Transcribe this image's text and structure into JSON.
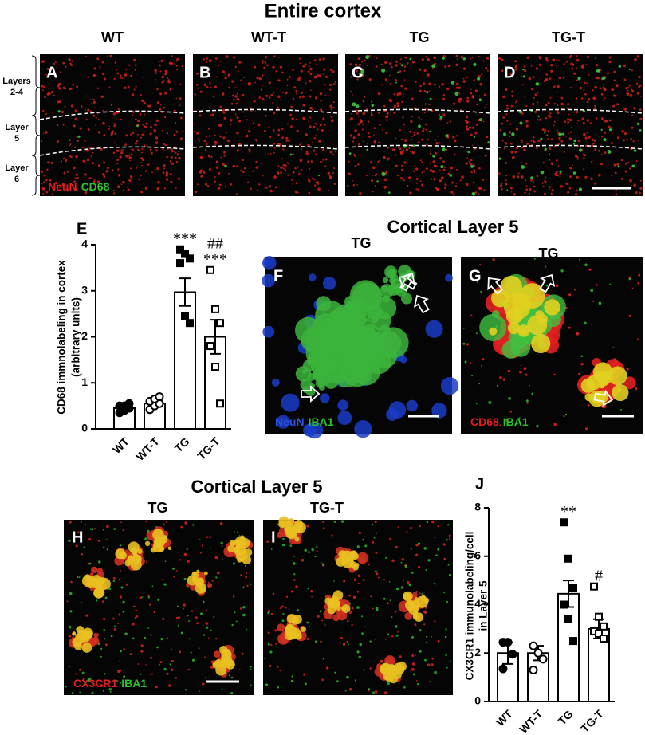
{
  "title": "Entire cortex",
  "columns": [
    "WT",
    "WT-T",
    "TG",
    "TG-T"
  ],
  "panel_labels": [
    "A",
    "B",
    "C",
    "D",
    "E",
    "F",
    "G",
    "H",
    "I",
    "J"
  ],
  "layers": [
    [
      "Layers",
      "2-4"
    ],
    [
      "Layer",
      "5"
    ],
    [
      "Layer",
      "6"
    ]
  ],
  "stain_a": [
    "NeuN",
    "CD68"
  ],
  "layer5_title_top": "Cortical Layer 5",
  "f_title": "TG",
  "g_title": "TG",
  "stain_f": [
    "NeuN",
    "IBA1"
  ],
  "stain_g": [
    "CD68",
    "IBA1"
  ],
  "layer5_title_bottom": "Cortical Layer 5",
  "h_title": "TG",
  "i_title": "TG-T",
  "stain_h": [
    "CX3CR1",
    "IBA1"
  ],
  "chart_data": [
    {
      "type": "bar",
      "y_label": [
        "CD68 immnolabeling in cortex",
        "(arbitrary units)"
      ],
      "categories": [
        "WT",
        "WT-T",
        "TG",
        "TG-T"
      ],
      "values": [
        0.45,
        0.55,
        2.97,
        2.0
      ],
      "errors": [
        0.05,
        0.06,
        0.3,
        0.37
      ],
      "points": [
        [
          0.35,
          0.4,
          0.45,
          0.5,
          0.5,
          0.55
        ],
        [
          0.42,
          0.5,
          0.55,
          0.6,
          0.65,
          0.7
        ],
        [
          3.9,
          3.8,
          3.7,
          3.6,
          2.45,
          2.3
        ],
        [
          3.45,
          2.6,
          2.3,
          1.8,
          1.35,
          0.55
        ]
      ],
      "markers": [
        "circle",
        "circle",
        "square",
        "square"
      ],
      "filled": [
        true,
        false,
        true,
        false
      ],
      "annotations": [
        [],
        [],
        [
          "***"
        ],
        [
          "##",
          "***"
        ]
      ],
      "ylim": [
        0,
        4
      ],
      "yticks": [
        0,
        1,
        2,
        3,
        4
      ]
    },
    {
      "type": "bar",
      "y_label": [
        "CX3CR1 immunolabeling/cell",
        "in Layer 5"
      ],
      "categories": [
        "WT",
        "WT-T",
        "TG",
        "TG-T"
      ],
      "values": [
        2.0,
        2.0,
        4.45,
        3.0
      ],
      "errors": [
        0.45,
        0.3,
        0.55,
        0.4
      ],
      "points": [
        [
          2.45,
          2.45,
          1.95,
          1.35
        ],
        [
          2.3,
          2.0,
          1.75,
          1.3
        ],
        [
          7.4,
          5.9,
          4.7,
          4.0,
          3.4,
          2.5
        ],
        [
          4.75,
          3.5,
          3.1,
          2.9,
          2.8,
          2.6
        ]
      ],
      "markers": [
        "circle",
        "circle",
        "square",
        "square"
      ],
      "filled": [
        true,
        false,
        true,
        false
      ],
      "annotations": [
        [],
        [],
        [
          "**"
        ],
        [
          "#"
        ]
      ],
      "ylim": [
        0,
        8
      ],
      "yticks": [
        0,
        2,
        4,
        6,
        8
      ]
    }
  ]
}
